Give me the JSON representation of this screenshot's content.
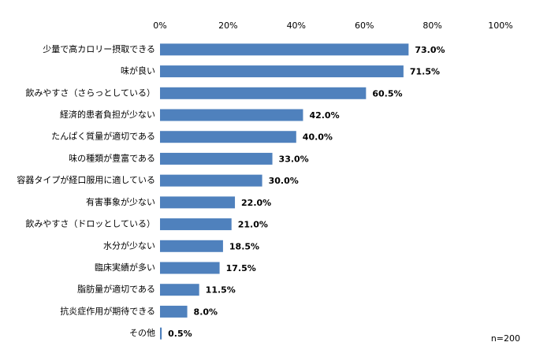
{
  "chart_data": {
    "type": "barh",
    "categories": [
      "少量で高カロリー摂取できる",
      "味が良い",
      "飲みやすさ（さらっとしている）",
      "経済的患者負担が少ない",
      "たんぱく質量が適切である",
      "味の種類が豊富である",
      "容器タイプが経口服用に適している",
      "有害事象が少ない",
      "飲みやすさ（ドロッとしている）",
      "水分が少ない",
      "臨床実績が多い",
      "脂肪量が適切である",
      "抗炎症作用が期待できる",
      "その他"
    ],
    "values": [
      73.0,
      71.5,
      60.5,
      42.0,
      40.0,
      33.0,
      30.0,
      22.0,
      21.0,
      18.5,
      17.5,
      11.5,
      8.0,
      0.5
    ],
    "value_labels": [
      "73.0%",
      "71.5%",
      "60.5%",
      "42.0%",
      "40.0%",
      "33.0%",
      "30.0%",
      "22.0%",
      "21.0%",
      "18.5%",
      "17.5%",
      "11.5%",
      "8.0%",
      "0.5%"
    ],
    "color": "#4f81bd",
    "xlim": [
      0,
      100
    ],
    "xticks": [
      {
        "value": 0,
        "label": "0%"
      },
      {
        "value": 20,
        "label": "20%"
      },
      {
        "value": 40,
        "label": "40%"
      },
      {
        "value": 60,
        "label": "60%"
      },
      {
        "value": 80,
        "label": "80%"
      },
      {
        "value": 100,
        "label": "100%"
      }
    ],
    "grid": false,
    "annotation": "n=200"
  }
}
